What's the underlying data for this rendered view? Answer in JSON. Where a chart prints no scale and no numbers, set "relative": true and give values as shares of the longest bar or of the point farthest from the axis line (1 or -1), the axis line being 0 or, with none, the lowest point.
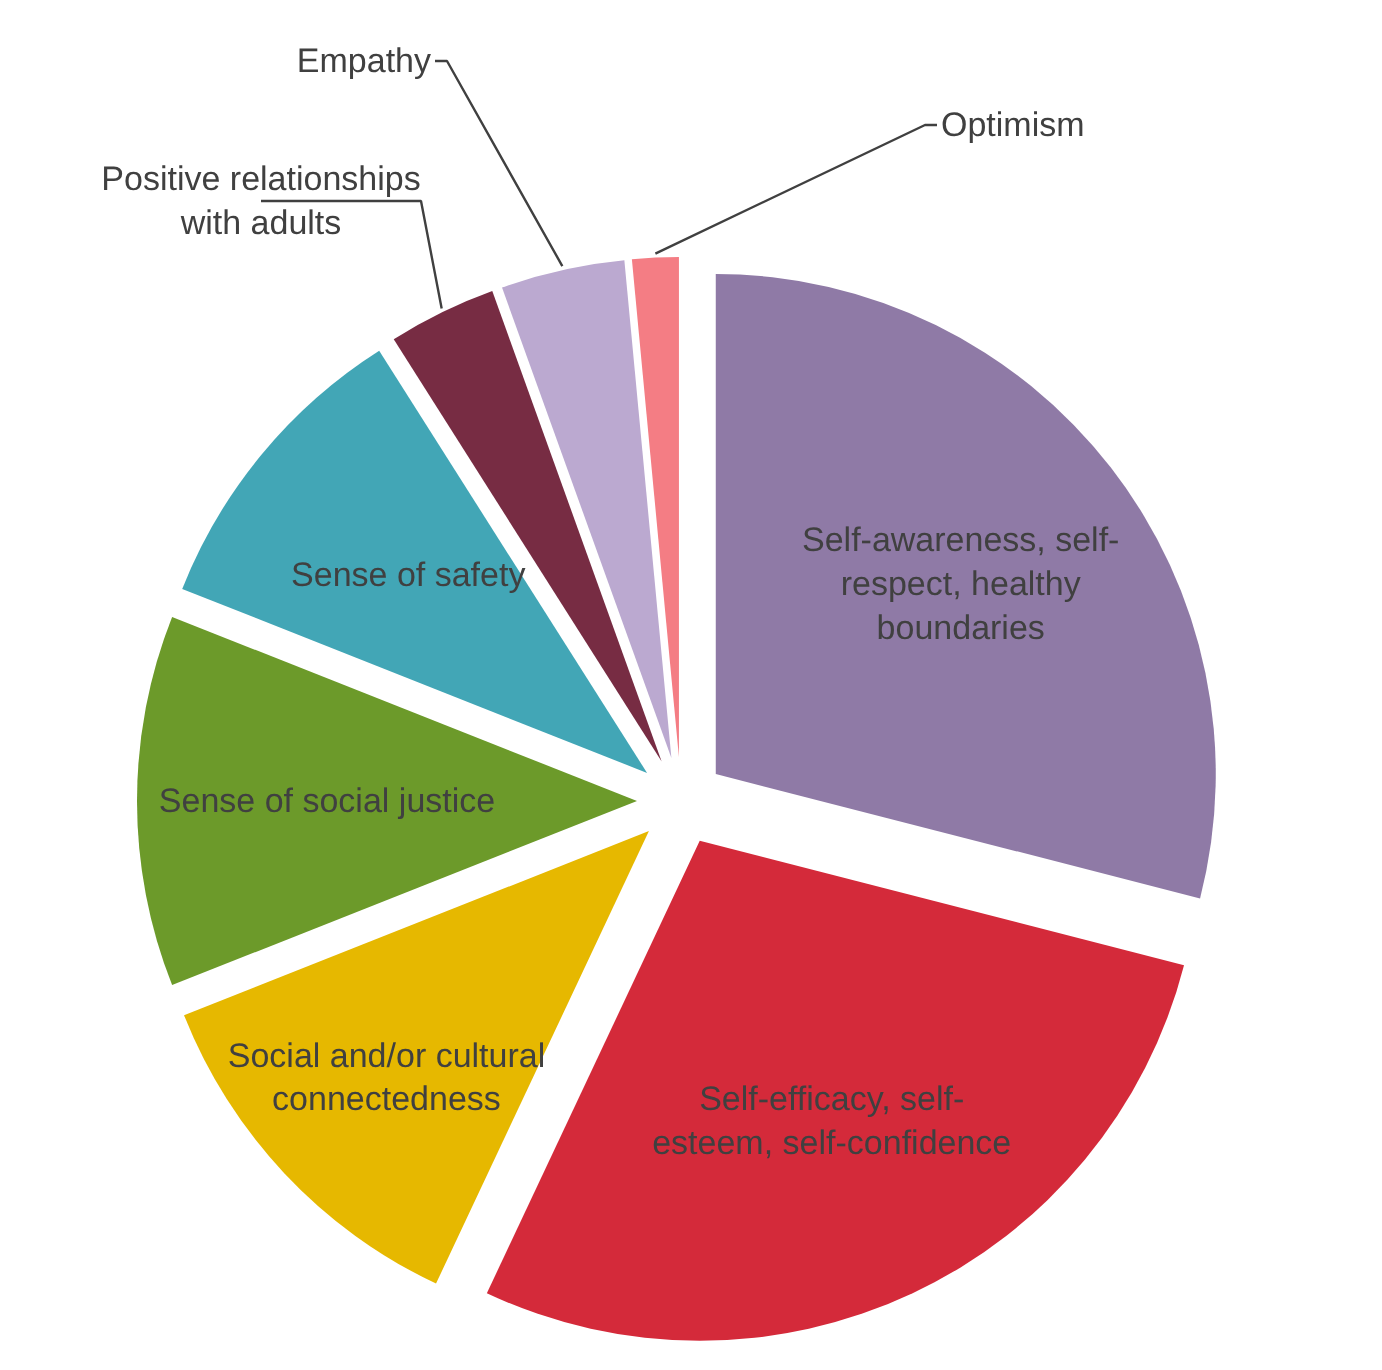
{
  "chart_data": {
    "type": "pie",
    "relative": true,
    "categories": [
      "Self-awareness, self-respect, healthy boundaries",
      "Self-efficacy, self-esteem, self-confidence",
      "Social and/or cultural connectedness",
      "Sense of social justice",
      "Sense of safety",
      "Positive relationships with adults",
      "Empathy",
      "Optimism"
    ],
    "values": [
      29,
      28,
      12,
      12,
      10,
      3.5,
      4,
      1.5
    ],
    "colors": [
      "#8f7aa6",
      "#d42a3a",
      "#e6b800",
      "#6c9a2a",
      "#42a6b6",
      "#772c43",
      "#bba9d0",
      "#f47d84"
    ]
  }
}
